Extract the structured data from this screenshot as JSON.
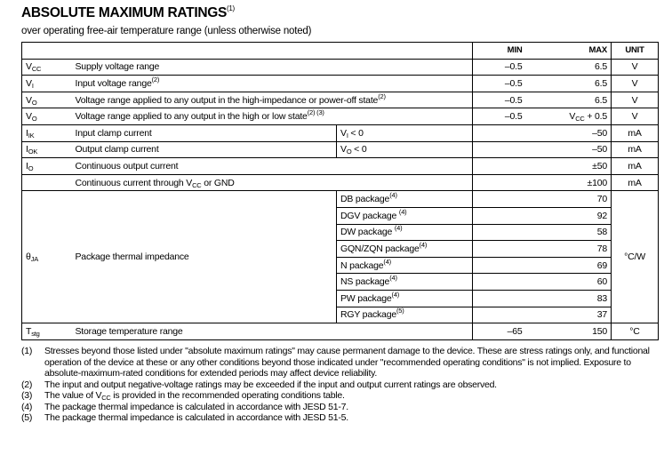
{
  "title": "ABSOLUTE MAXIMUM RATINGS",
  "title_note": "(1)",
  "subtitle": "over operating free-air temperature range (unless otherwise noted)",
  "headers": {
    "min": "MIN",
    "max": "MAX",
    "unit": "UNIT"
  },
  "rows": [
    {
      "sym": "V",
      "sym_sub": "CC",
      "desc": "Supply voltage range",
      "desc_note": "",
      "min": "–0.5",
      "max": "6.5",
      "unit": "V"
    },
    {
      "sym": "V",
      "sym_sub": "I",
      "desc": "Input voltage range",
      "desc_note": "(2)",
      "min": "–0.5",
      "max": "6.5",
      "unit": "V"
    },
    {
      "sym": "V",
      "sym_sub": "O",
      "desc": "Voltage range applied to any output in the high-impedance or power-off state",
      "desc_note": "(2)",
      "min": "–0.5",
      "max": "6.5",
      "unit": "V"
    },
    {
      "sym": "V",
      "sym_sub": "O",
      "desc": "Voltage range applied to any output in the high or low state",
      "desc_note": "(2) (3)",
      "min": "–0.5",
      "max_pre": "V",
      "max_sub": "CC",
      "max_post": " + 0.5",
      "unit": "V"
    },
    {
      "sym": "I",
      "sym_sub": "IK",
      "desc": "Input clamp current",
      "cond": "V",
      "cond_sub": "I",
      "cond_post": " < 0",
      "min": "",
      "max": "–50",
      "unit": "mA"
    },
    {
      "sym": "I",
      "sym_sub": "OK",
      "desc": "Output clamp current",
      "cond": "V",
      "cond_sub": "O",
      "cond_post": " < 0",
      "min": "",
      "max": "–50",
      "unit": "mA"
    },
    {
      "sym": "I",
      "sym_sub": "O",
      "desc": "Continuous output current",
      "min": "",
      "max": "±50",
      "unit": "mA"
    },
    {
      "sym": "",
      "sym_sub": "",
      "desc_pre": "Continuous current through V",
      "desc_sub": "CC",
      "desc_post": " or GND",
      "min": "",
      "max": "±100",
      "unit": "mA"
    }
  ],
  "thermal": {
    "sym": "θ",
    "sym_sub": "JA",
    "desc": "Package thermal impedance",
    "unit": "°C/W",
    "packages": [
      {
        "name": "DB package",
        "note": "(4)",
        "max": "70"
      },
      {
        "name": "DGV package ",
        "note": "(4)",
        "max": "92"
      },
      {
        "name": "DW package ",
        "note": "(4)",
        "max": "58"
      },
      {
        "name": "GQN/ZQN package",
        "note": "(4)",
        "max": "78"
      },
      {
        "name": "N package",
        "note": "(4)",
        "max": "69"
      },
      {
        "name": "NS package",
        "note": "(4)",
        "max": "60"
      },
      {
        "name": "PW package",
        "note": "(4)",
        "max": "83"
      },
      {
        "name": "RGY package",
        "note": "(5)",
        "max": "37"
      }
    ]
  },
  "storage": {
    "sym": "T",
    "sym_sub": "stg",
    "desc": "Storage temperature range",
    "min": "–65",
    "max": "150",
    "unit": "°C"
  },
  "notes": [
    {
      "n": "(1)",
      "text": "Stresses beyond those listed under \"absolute maximum ratings\" may cause permanent damage to the device. These are stress ratings only, and functional operation of the device at these or any other conditions beyond those indicated under \"recommended operating conditions\" is not implied. Exposure to absolute-maximum-rated conditions for extended periods may affect device reliability."
    },
    {
      "n": "(2)",
      "text": "The input and output negative-voltage ratings may be exceeded if the input and output current ratings are observed."
    },
    {
      "n": "(3)",
      "pre": "The value of V",
      "sub": "CC",
      "post": " is provided in the recommended operating conditions table."
    },
    {
      "n": "(4)",
      "text": "The package thermal impedance is calculated in accordance with JESD 51-7."
    },
    {
      "n": "(5)",
      "text": "The package thermal impedance is calculated in accordance with JESD 51-5."
    }
  ]
}
